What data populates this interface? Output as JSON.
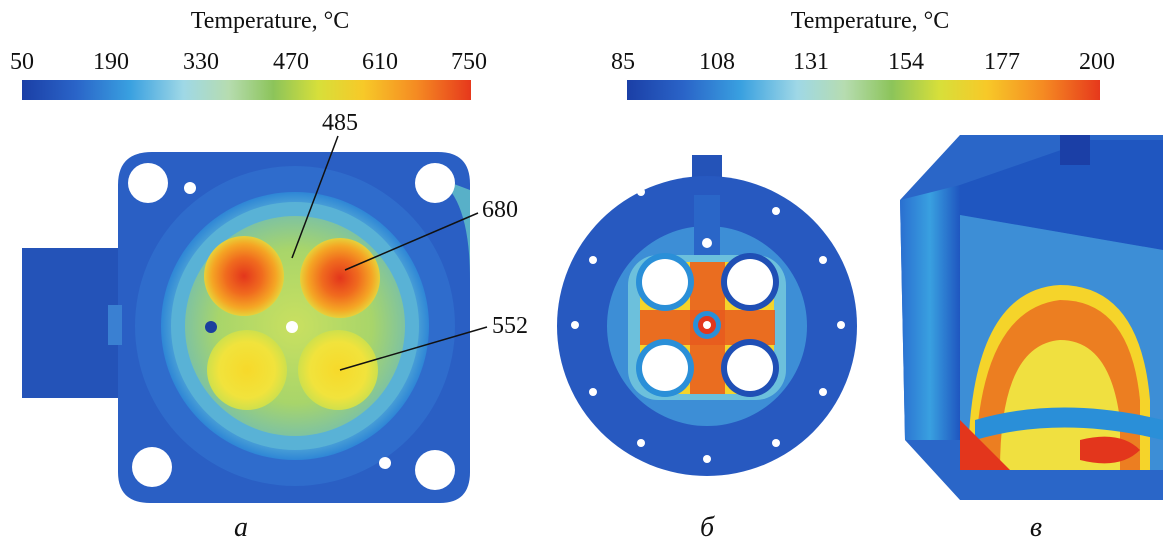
{
  "colorbars": [
    {
      "title": "Temperature, °C",
      "ticks": [
        "50",
        "190",
        "330",
        "470",
        "610",
        "750"
      ]
    },
    {
      "title": "Temperature, °C",
      "ticks": [
        "85",
        "108",
        "131",
        "154",
        "177",
        "200"
      ]
    }
  ],
  "callouts": [
    "485",
    "680",
    "552"
  ],
  "panel_labels": [
    "а",
    "б",
    "в"
  ],
  "colors": {
    "cold": "#1f4fb5",
    "cool": "#2a7fd0",
    "mid": "#8fd27a",
    "warm": "#f3e43a",
    "hot": "#f06a1e",
    "hottest": "#e3361c"
  }
}
